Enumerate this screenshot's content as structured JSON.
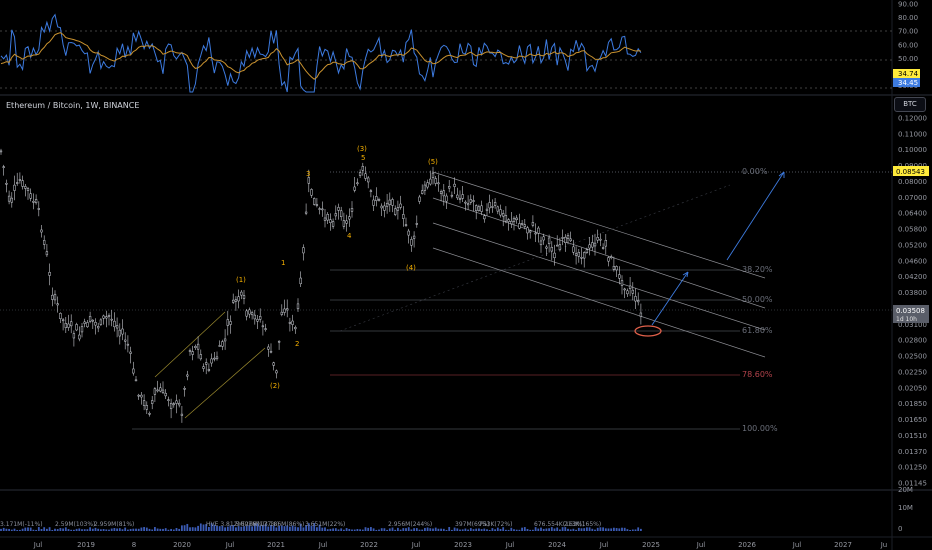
{
  "symbol_title": "Ethereum / Bitcoin, 1W, BINANCE",
  "currency_button": "BTC",
  "colors": {
    "background": "#000000",
    "candle": "#d1d4dc",
    "rsi_line": "#3d7be0",
    "rsi_ma": "#c9922f",
    "wave_label": "#f5b000",
    "channel": "#8f9096",
    "arrow": "#3d7be0",
    "fib": "#6b6f7a",
    "fib_786": "#b2434b",
    "price_badge": "#ffeb3b",
    "circle": "#e0604a"
  },
  "rsi_axis": [
    "90.00",
    "80.00",
    "70.00",
    "60.00",
    "50.00",
    "40.00",
    "30.00"
  ],
  "rsi_badges": {
    "rsi": "34.74",
    "ma": "34.45"
  },
  "price_axis": [
    "0.12000",
    "0.11000",
    "0.10000",
    "0.09000",
    "0.08000",
    "0.07000",
    "0.06400",
    "0.05800",
    "0.05200",
    "0.04600",
    "0.04200",
    "0.03800",
    "0.03400",
    "0.03100",
    "0.02800",
    "0.02500",
    "0.02250",
    "0.02050",
    "0.01850",
    "0.01650",
    "0.01510",
    "0.01370",
    "0.01250",
    "0.01145"
  ],
  "current_price": {
    "value": "0.03508",
    "countdown": "1d 10h"
  },
  "target_price": "0.08543",
  "volume_axis": [
    "20M",
    "10M",
    "0"
  ],
  "time_axis": [
    "Jul",
    "2019",
    "8",
    "2020",
    "Jul",
    "2021",
    "Jul",
    "2022",
    "Jul",
    "2023",
    "Jul",
    "2024",
    "Jul",
    "2025",
    "Jul",
    "2026",
    "Jul",
    "2027",
    "Ju"
  ],
  "volume_labels": [
    "3.171M(-11%)",
    "2.59M(103%)",
    "2.959M(81%)",
    "HVE 3.812M(266%)",
    "5.607M(177%)",
    "3.186M(86%)",
    "3.651M(22%)",
    "2.956M(244%)",
    "397M(69%)",
    "753K(72%)",
    "676.554K(163%)",
    "213K(165%)"
  ],
  "chart_data": {
    "type": "candlestick",
    "title": "Ethereum / Bitcoin, 1W, BINANCE",
    "x": [
      "2018-Jul",
      "2019",
      "2019-Jul",
      "2020",
      "2020-Jul",
      "2021",
      "2021-Jul",
      "2022",
      "2022-Jul",
      "2023",
      "2023-Jul",
      "2024",
      "2024-Jul",
      "2025"
    ],
    "close_approx": [
      0.07,
      0.034,
      0.027,
      0.02,
      0.036,
      0.03,
      0.066,
      0.08,
      0.07,
      0.07,
      0.063,
      0.055,
      0.052,
      0.035
    ],
    "y_scale": "log",
    "ylim": [
      0.0114,
      0.125
    ],
    "fib_levels": [
      {
        "label": "0.00%",
        "price": 0.0854
      },
      {
        "label": "38.20%",
        "price": 0.0462
      },
      {
        "label": "50.00%",
        "price": 0.0379
      },
      {
        "label": "61.80%",
        "price": 0.0311
      },
      {
        "label": "78.60%",
        "price": 0.023
      },
      {
        "label": "100.00%",
        "price": 0.0163
      }
    ],
    "wave_labels": [
      {
        "label": "(1)",
        "price": 0.044
      },
      {
        "label": "(2)",
        "price": 0.0215
      },
      {
        "label": "1",
        "price": 0.049
      },
      {
        "label": "2",
        "price": 0.028
      },
      {
        "label": "3",
        "price": 0.084
      },
      {
        "label": "4",
        "price": 0.059
      },
      {
        "label": "5",
        "price": 0.088
      },
      {
        "label": "(3)",
        "price": 0.093
      },
      {
        "label": "(4)",
        "price": 0.047
      },
      {
        "label": "(5)",
        "price": 0.087
      }
    ],
    "rsi": {
      "ylim": [
        25,
        95
      ],
      "current": 34.74,
      "ma": 34.45
    },
    "volume": {
      "ylim": [
        0,
        20000000
      ]
    }
  }
}
